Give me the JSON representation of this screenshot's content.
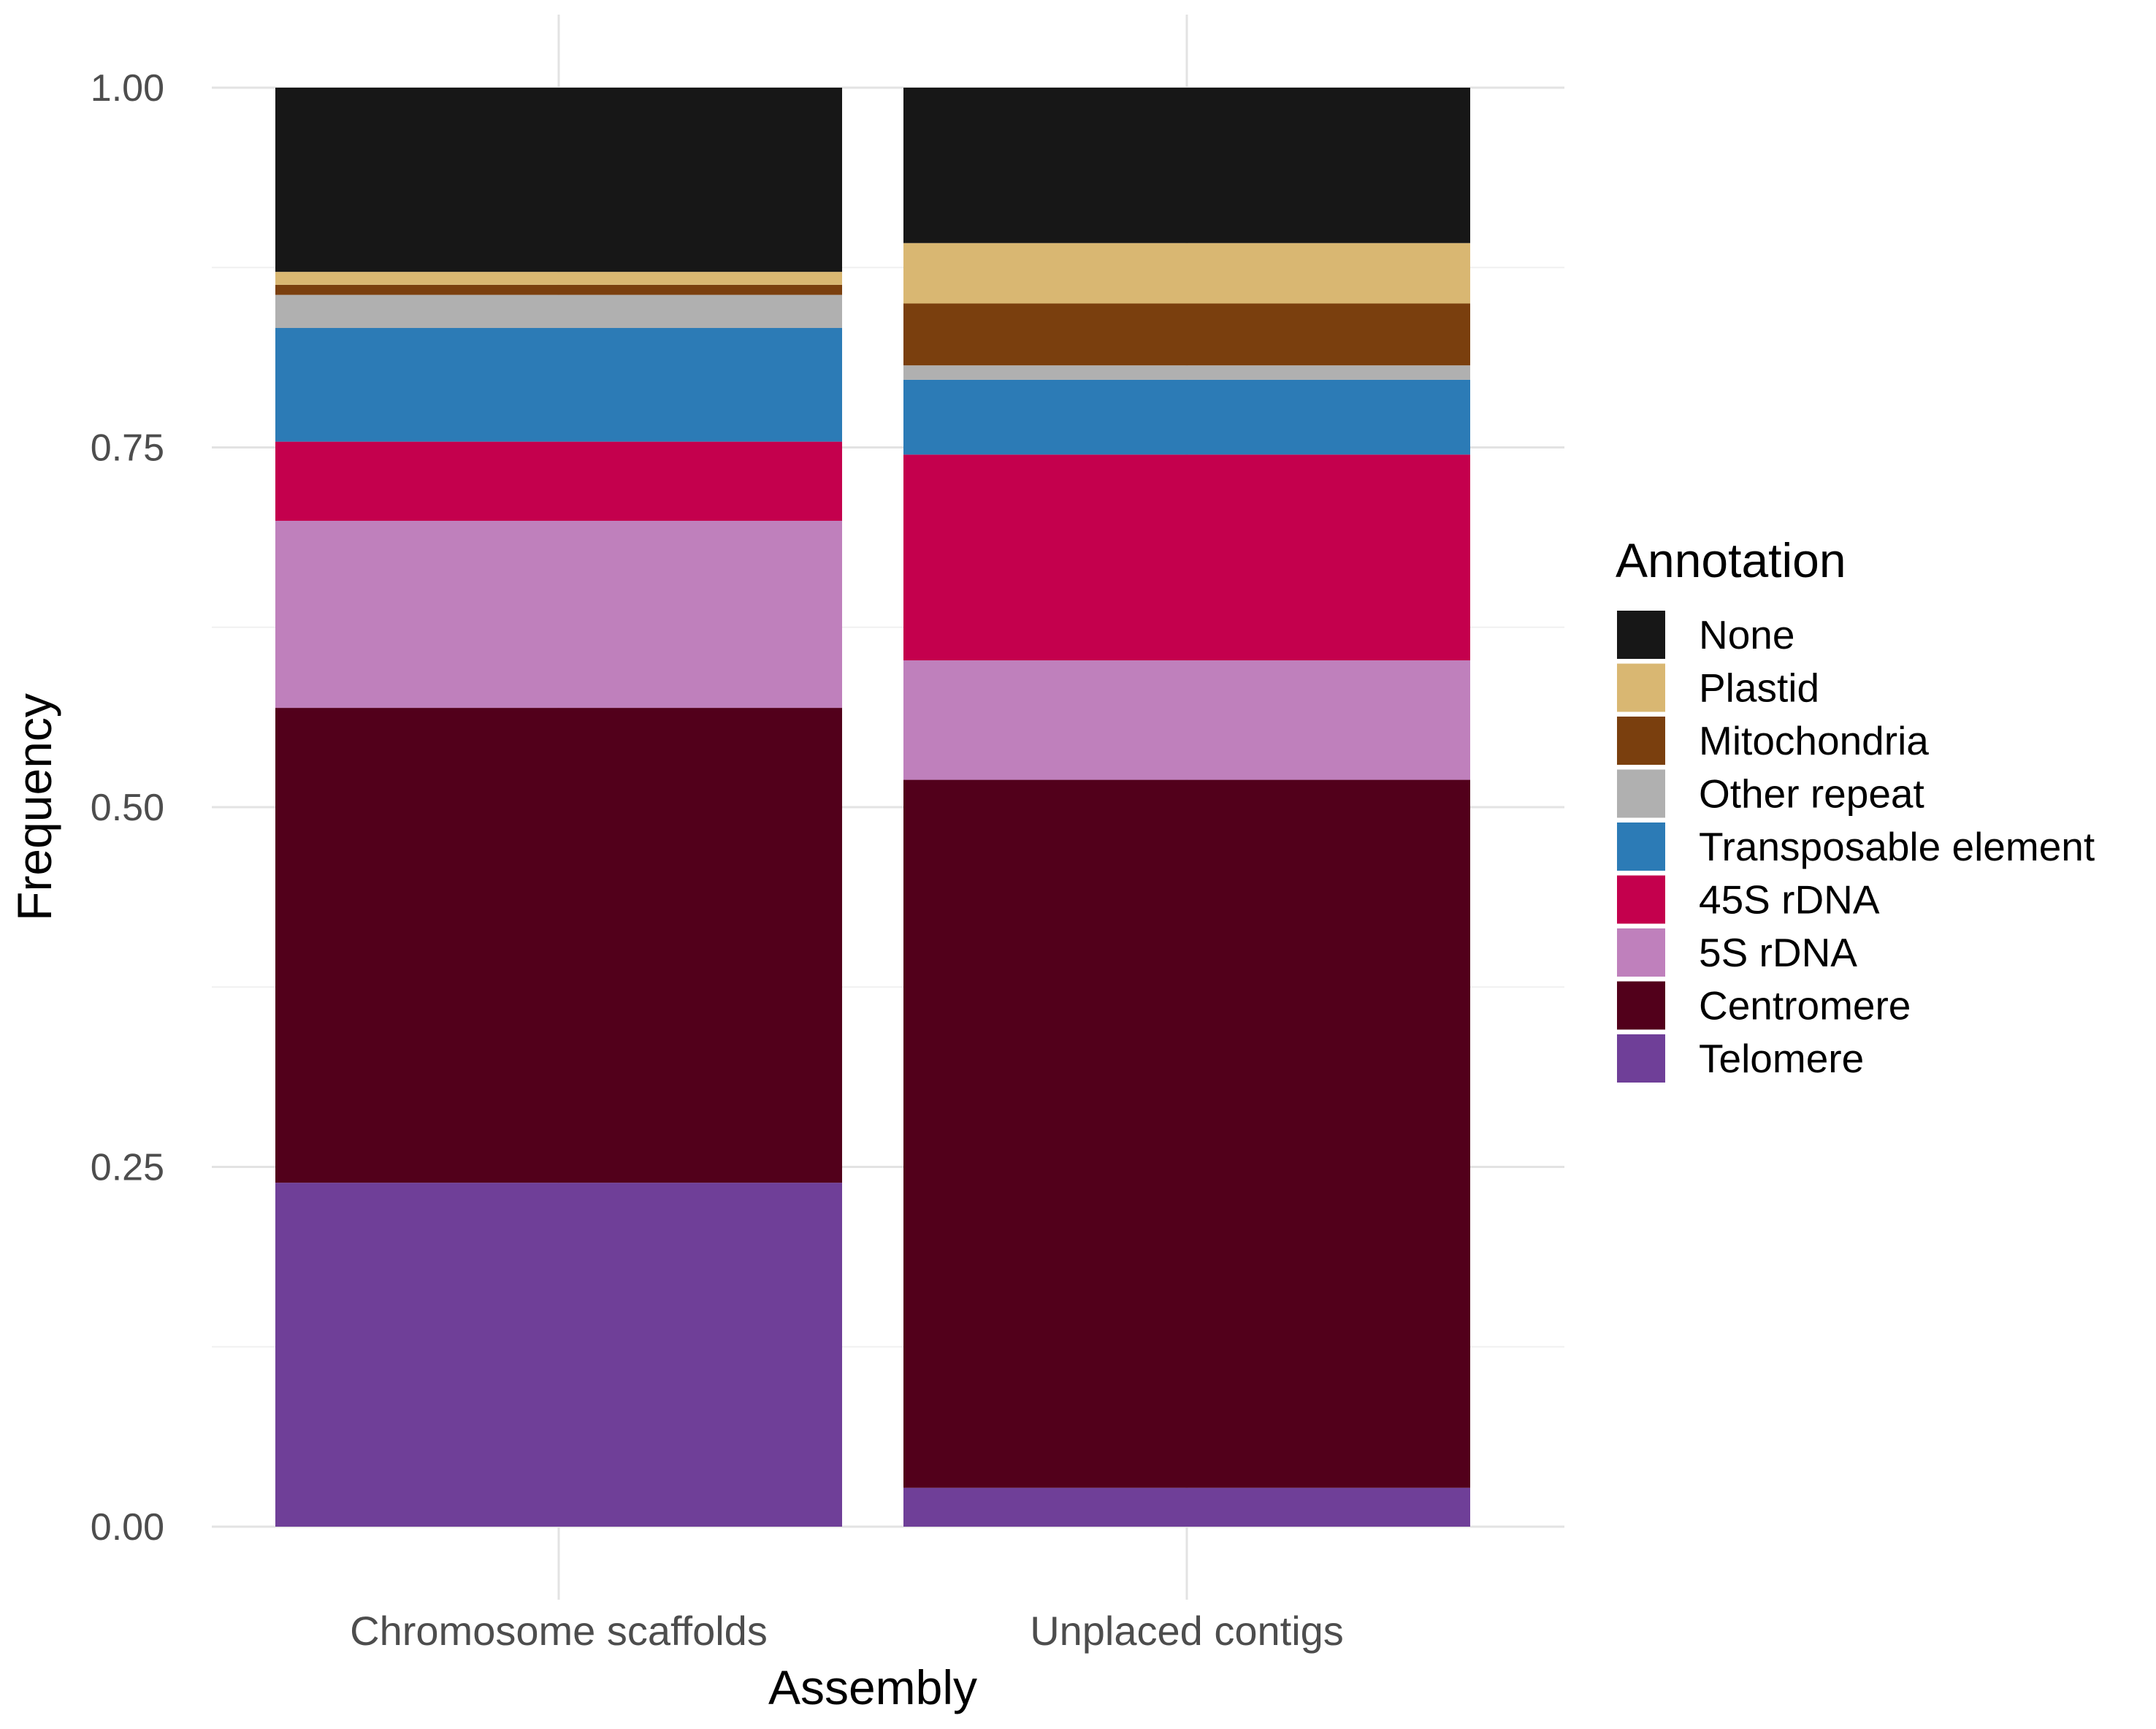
{
  "chart_data": {
    "type": "bar",
    "stacked": true,
    "title": "",
    "xlabel": "Assembly",
    "ylabel": "Frequency",
    "ylim": [
      0,
      1
    ],
    "yticks": [
      "0.00",
      "0.25",
      "0.50",
      "0.75",
      "1.00"
    ],
    "categories": [
      "Chromosome scaffolds",
      "Unplaced contigs"
    ],
    "legend": {
      "title": "Annotation",
      "position": "right"
    },
    "grid": true,
    "series": [
      {
        "name": "Telomere",
        "color": "#6F3F98",
        "values": [
          0.239,
          0.027
        ]
      },
      {
        "name": "Centromere",
        "color": "#52001B",
        "values": [
          0.33,
          0.492
        ]
      },
      {
        "name": "5S rDNA",
        "color": "#BF80BC",
        "values": [
          0.13,
          0.083
        ]
      },
      {
        "name": "45S rDNA",
        "color": "#C4004D",
        "values": [
          0.055,
          0.143
        ]
      },
      {
        "name": "Transposable element",
        "color": "#2C7BB6",
        "values": [
          0.079,
          0.052
        ]
      },
      {
        "name": "Other repeat",
        "color": "#B0B0B0",
        "values": [
          0.023,
          0.01
        ]
      },
      {
        "name": "Mitochondria",
        "color": "#7A3F0E",
        "values": [
          0.007,
          0.043
        ]
      },
      {
        "name": "Plastid",
        "color": "#D9B772",
        "values": [
          0.009,
          0.042
        ]
      },
      {
        "name": "None",
        "color": "#171717",
        "values": [
          0.128,
          0.108
        ]
      }
    ],
    "legend_order": [
      "None",
      "Plastid",
      "Mitochondria",
      "Other repeat",
      "Transposable element",
      "45S rDNA",
      "5S rDNA",
      "Centromere",
      "Telomere"
    ]
  }
}
